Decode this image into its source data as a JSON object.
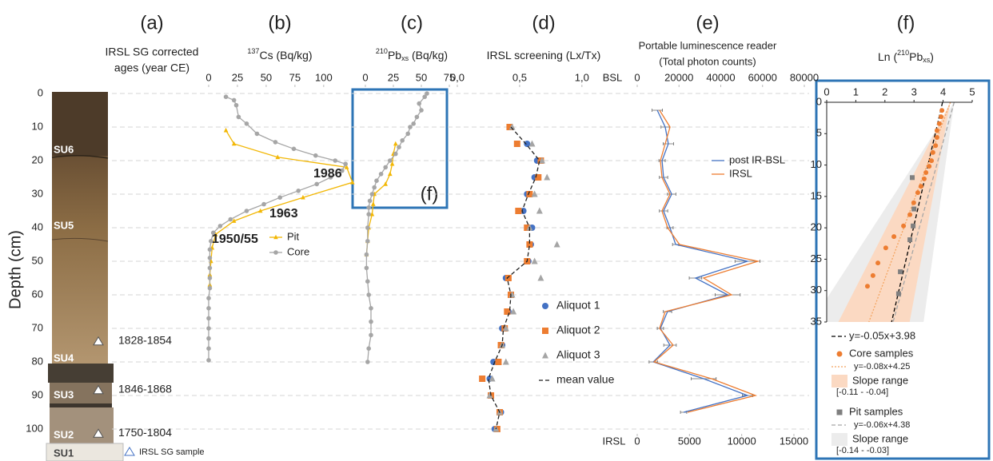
{
  "chart_data": [
    {
      "type": "column",
      "title": "(a)",
      "subtitle": [
        "IRSL SG corrected",
        "ages (year CE)"
      ],
      "ylabel": "Depth (cm)",
      "ylim": [
        0,
        105
      ],
      "yticks": [
        0,
        10,
        20,
        30,
        40,
        50,
        60,
        70,
        80,
        90,
        100
      ],
      "grid": true,
      "units": [
        "SU6",
        "SU5",
        "SU4",
        "SU3",
        "SU2",
        "SU1"
      ],
      "samples": {
        "name": "IRSL SG sample",
        "depth": [
          74,
          88.5,
          101.5
        ],
        "labels": [
          "1828-1854",
          "1846-1868",
          "1750-1804"
        ]
      }
    },
    {
      "type": "line",
      "title": "(b)",
      "xlabel_sup": "137",
      "xlabel": "Cs (Bq/kg)",
      "xlim": [
        0,
        130
      ],
      "xticks": [
        0,
        25,
        50,
        75,
        100
      ],
      "series": [
        {
          "name": "Pit",
          "color": "#f2b705",
          "marker": "triangle",
          "line": "solid",
          "depth": [
            11,
            15,
            19,
            22,
            26.5,
            31,
            35,
            38,
            42,
            46,
            50,
            54,
            57
          ],
          "values": [
            15,
            22,
            60,
            120,
            125,
            82,
            45,
            22,
            6,
            3,
            2,
            1,
            1
          ]
        },
        {
          "name": "Core",
          "color": "#a6a6a6",
          "marker": "circle",
          "line": "solid",
          "depth": [
            1,
            2,
            3.5,
            7,
            9,
            12,
            14.5,
            16.5,
            18.5,
            20,
            21,
            23,
            25,
            27,
            29,
            31,
            33,
            35,
            37.5,
            39.5,
            41.5,
            44,
            46.5,
            49,
            52,
            55,
            58,
            61,
            64,
            67,
            70,
            73,
            76,
            79.5
          ],
          "values": [
            15,
            22,
            24,
            26,
            33,
            42,
            58,
            74,
            93,
            110,
            119,
            116,
            106,
            94,
            78,
            62,
            48,
            33,
            19,
            10,
            4,
            2,
            1,
            1,
            1,
            1,
            1,
            0,
            0,
            0,
            0,
            0,
            0,
            0
          ]
        }
      ],
      "annotations": [
        "1986",
        "1963",
        "1950/55"
      ]
    },
    {
      "type": "line",
      "title": "(c)",
      "xlabel_sup": "210",
      "xlabel": "Pb",
      "xlabel_sub": "xs",
      "xlabel_post": " (Bq/kg)",
      "xlim": [
        -10,
        75
      ],
      "xticks": [
        0,
        25,
        50,
        75
      ],
      "inset_label": "(f)",
      "series": [
        {
          "name": "Pit",
          "color": "#f2b705",
          "marker": "triangle",
          "line": "solid",
          "depth": [
            15,
            18,
            21,
            24,
            27,
            30,
            33,
            36,
            40,
            44,
            48
          ],
          "values": [
            27,
            25,
            24,
            22,
            18,
            8,
            7,
            6,
            3,
            2,
            1
          ]
        },
        {
          "name": "Core",
          "color": "#a6a6a6",
          "marker": "circle",
          "line": "solid",
          "depth": [
            0,
            1,
            3,
            5,
            7,
            9,
            10,
            12,
            14,
            16,
            18,
            20,
            22,
            24,
            26,
            28,
            30,
            32,
            34,
            36,
            40,
            44,
            48,
            52,
            56,
            60,
            64,
            68,
            72,
            76,
            80
          ],
          "values": [
            55,
            53,
            48,
            50,
            46,
            43,
            40,
            38,
            33,
            30,
            27,
            22,
            18,
            14,
            10,
            8,
            6,
            4,
            3,
            3,
            2,
            2,
            1,
            1,
            2,
            3,
            5,
            5,
            5,
            3,
            2
          ]
        }
      ]
    },
    {
      "type": "scatter",
      "title": "(d)",
      "xlabel": "IRSL screening (Lx/Tx)",
      "xlim": [
        0,
        1.2
      ],
      "xticks": [
        {
          "value": 0,
          "label": "0,0"
        },
        {
          "value": 0.5,
          "label": "0,5"
        },
        {
          "value": 1,
          "label": "1,0"
        }
      ],
      "depth": [
        10,
        15,
        20,
        25,
        30,
        35,
        40,
        45,
        50,
        55,
        60,
        65,
        70,
        75,
        80,
        85,
        90,
        95,
        100
      ],
      "series": [
        {
          "name": "Aliquot 1",
          "color": "#4472c4",
          "marker": "circle",
          "line": "none",
          "values": [
            0.42,
            0.56,
            0.64,
            0.62,
            0.56,
            0.53,
            0.6,
            0.59,
            0.57,
            0.39,
            0.43,
            0.41,
            0.36,
            0.36,
            0.29,
            0.26,
            0.27,
            0.35,
            0.3
          ]
        },
        {
          "name": "Aliquot 2",
          "color": "#ed7d31",
          "marker": "square",
          "line": "none",
          "values": [
            0.42,
            0.48,
            0.67,
            0.65,
            0.58,
            0.49,
            0.56,
            0.58,
            0.56,
            0.41,
            0.43,
            0.4,
            0.38,
            0.35,
            0.33,
            0.2,
            0.27,
            0.34,
            0.32
          ]
        },
        {
          "name": "Aliquot 3",
          "color": "#a5a5a5",
          "marker": "triangle",
          "line": "none",
          "values": [
            0.44,
            0.6,
            0.68,
            0.72,
            0.62,
            0.66,
            0.58,
            0.8,
            0.62,
            0.67,
            0.44,
            0.45,
            0.39,
            0.36,
            0.39,
            0.28,
            0.26,
            0.34,
            0.31
          ]
        },
        {
          "name": "mean value",
          "color": "#222222",
          "marker": "none",
          "line": "dashed",
          "values": [
            0.43,
            0.55,
            0.66,
            0.63,
            0.57,
            0.52,
            0.58,
            0.58,
            0.56,
            0.4,
            0.43,
            0.42,
            0.37,
            0.36,
            0.3,
            0.25,
            0.27,
            0.34,
            0.31
          ]
        }
      ]
    },
    {
      "type": "line",
      "title": "(e)",
      "subtitle": [
        "Portable luminescence reader",
        "(Total photon counts)"
      ],
      "xlabel": "BSL",
      "xlim": [
        0,
        80000
      ],
      "xticks": [
        0,
        20000,
        40000,
        60000,
        80000
      ],
      "x2label": "IRSL",
      "x2lim": [
        0,
        15000
      ],
      "x2ticks": [
        0,
        5000,
        10000,
        15000
      ],
      "depth": [
        5,
        10,
        15,
        20,
        25,
        30,
        35,
        40,
        45,
        50,
        55,
        60,
        65,
        70,
        75,
        80,
        85,
        90,
        95
      ],
      "series": [
        {
          "name": "post IR-BSL",
          "color": "#4472c4",
          "marker": "none",
          "line": "solid",
          "values": [
            9600,
            13400,
            14900,
            11900,
            12600,
            16500,
            12600,
            15700,
            18400,
            52800,
            27900,
            43300,
            14500,
            11100,
            15700,
            7700,
            31800,
            52800,
            22200
          ],
          "errors": [
            2500,
            2000,
            2500,
            1500,
            2000,
            2000,
            2000,
            1500,
            1500,
            6000,
            3000,
            6000,
            2000,
            1500,
            3000,
            2000,
            6000,
            2500,
            1500
          ]
        },
        {
          "name": "IRSL",
          "color": "#ed7d31",
          "marker": "none",
          "line": "solid",
          "axis": "x2",
          "values": [
            2140,
            3140,
            2680,
            2220,
            2370,
            3140,
            2370,
            2910,
            4050,
            11550,
            6350,
            9030,
            2680,
            2140,
            3440,
            1610,
            7110,
            11320,
            4820
          ]
        }
      ]
    },
    {
      "type": "scatter",
      "title": "(f)",
      "xlabel_pre": "Ln (",
      "xlabel_sup": "210",
      "xlabel": "Pb",
      "xlabel_sub": "xs",
      "xlabel_post": ")",
      "xlim": [
        0,
        5
      ],
      "xticks": [
        0,
        1,
        2,
        3,
        4,
        5
      ],
      "ylim": [
        0,
        35
      ],
      "yticks": [
        0,
        5,
        10,
        15,
        20,
        25,
        30,
        35
      ],
      "series": [
        {
          "name": "Core samples",
          "color": "#ed7d31",
          "marker": "circle",
          "depth": [
            1.3,
            2.3,
            3.4,
            4.5,
            5.6,
            6.9,
            8.0,
            9.3,
            10.2,
            11.2,
            12.2,
            13.4,
            14.4,
            16.0,
            17.9,
            19.7,
            21.4,
            23.2,
            25.6,
            27.6,
            29.3
          ],
          "values": [
            3.96,
            3.93,
            3.87,
            3.79,
            3.79,
            3.74,
            3.65,
            3.6,
            3.52,
            3.41,
            3.35,
            3.24,
            3.13,
            2.99,
            2.86,
            2.64,
            2.31,
            2.03,
            1.76,
            1.59,
            1.4
          ]
        },
        {
          "name": "Pit samples",
          "color": "#7f7f7f",
          "marker": "square",
          "depth": [
            12,
            17,
            19.7,
            21.9,
            27,
            30.5
          ],
          "values": [
            2.94,
            3.0,
            2.97,
            2.86,
            2.53,
            2.47
          ]
        }
      ],
      "fits": [
        {
          "label": "y=-0.05x+3.98",
          "slope": -0.05,
          "intercept": 3.98,
          "color": "#000000",
          "line": "dashed"
        },
        {
          "label": "y=-0.08x+4.25",
          "slope": -0.08,
          "intercept": 4.25,
          "color": "#f4a460",
          "line": "dotted",
          "range": [
            -0.11,
            -0.04
          ],
          "range_name": "Slope range",
          "range_label": "[-0.11 -  -0.04]",
          "range_color": "#fbd9c2"
        },
        {
          "label": "y=-0.06x+4.38",
          "slope": -0.06,
          "intercept": 4.38,
          "color": "#a6a6a6",
          "line": "dashed",
          "range": [
            -0.14,
            -0.03
          ],
          "range_name": "Slope range",
          "range_label": "[-0.14 -  -0.03]",
          "range_color": "#ececec"
        }
      ]
    }
  ]
}
